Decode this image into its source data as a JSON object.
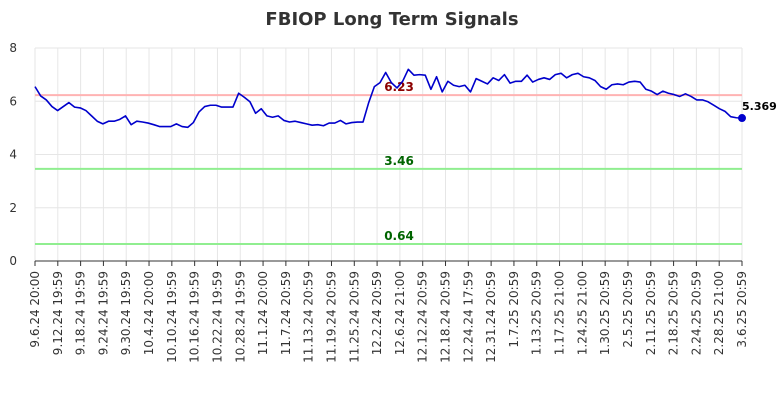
{
  "chart_data": {
    "type": "line",
    "title": "FBIOP Long Term Signals",
    "xlabel": "",
    "ylabel": "",
    "ylim": [
      0,
      8
    ],
    "yticks": [
      0,
      2,
      4,
      6,
      8
    ],
    "grid": true,
    "x_tick_labels": [
      "9.6.24 20:00",
      "9.12.24 19:59",
      "9.18.24 19:59",
      "9.24.24 19:59",
      "9.30.24 19:59",
      "10.4.24 20:00",
      "10.10.24 19:59",
      "10.16.24 19:59",
      "10.22.24 19:59",
      "10.28.24 19:59",
      "11.1.24 20:00",
      "11.7.24 20:59",
      "11.13.24 20:59",
      "11.19.24 20:59",
      "11.25.24 20:59",
      "12.2.24 20:59",
      "12.6.24 21:00",
      "12.12.24 20:59",
      "12.18.24 20:59",
      "12.24.24 17:59",
      "12.31.24 20:59",
      "1.7.25 20:59",
      "1.13.25 20:59",
      "1.17.25 21:00",
      "1.24.25 21:00",
      "1.30.25 20:59",
      "2.5.25 20:59",
      "2.11.25 20:59",
      "2.18.25 20:59",
      "2.24.25 20:59",
      "2.28.25 21:00",
      "3.6.25 20:59"
    ],
    "reference_lines": [
      {
        "value": 6.23,
        "label": "6.23",
        "color": "#ffb3b3",
        "label_color": "#8b0000"
      },
      {
        "value": 3.46,
        "label": "3.46",
        "color": "#90ee90",
        "label_color": "#006400"
      },
      {
        "value": 0.64,
        "label": "0.64",
        "color": "#90ee90",
        "label_color": "#006400"
      }
    ],
    "series": [
      {
        "color": "#0000cc",
        "values": [
          6.55,
          6.2,
          6.05,
          5.8,
          5.65,
          5.8,
          5.95,
          5.78,
          5.75,
          5.65,
          5.45,
          5.25,
          5.15,
          5.25,
          5.25,
          5.32,
          5.45,
          5.12,
          5.25,
          5.22,
          5.18,
          5.12,
          5.05,
          5.05,
          5.05,
          5.15,
          5.05,
          5.02,
          5.2,
          5.6,
          5.8,
          5.85,
          5.85,
          5.78,
          5.78,
          5.78,
          6.3,
          6.15,
          5.98,
          5.55,
          5.72,
          5.45,
          5.4,
          5.45,
          5.28,
          5.22,
          5.25,
          5.2,
          5.15,
          5.1,
          5.12,
          5.08,
          5.18,
          5.18,
          5.28,
          5.15,
          5.2,
          5.22,
          5.22,
          5.95,
          6.55,
          6.7,
          7.08,
          6.7,
          6.5,
          6.75,
          7.2,
          6.98,
          7.0,
          6.98,
          6.45,
          6.92,
          6.35,
          6.75,
          6.6,
          6.55,
          6.6,
          6.35,
          6.85,
          6.75,
          6.65,
          6.88,
          6.78,
          7.0,
          6.68,
          6.75,
          6.75,
          6.98,
          6.72,
          6.82,
          6.88,
          6.82,
          7.0,
          7.05,
          6.88,
          7.0,
          7.05,
          6.92,
          6.88,
          6.78,
          6.55,
          6.45,
          6.62,
          6.65,
          6.62,
          6.72,
          6.75,
          6.72,
          6.45,
          6.38,
          6.25,
          6.38,
          6.3,
          6.25,
          6.18,
          6.28,
          6.18,
          6.05,
          6.05,
          5.98,
          5.85,
          5.72,
          5.62,
          5.42,
          5.38,
          5.369
        ]
      }
    ],
    "last_value_label": "5.369"
  }
}
